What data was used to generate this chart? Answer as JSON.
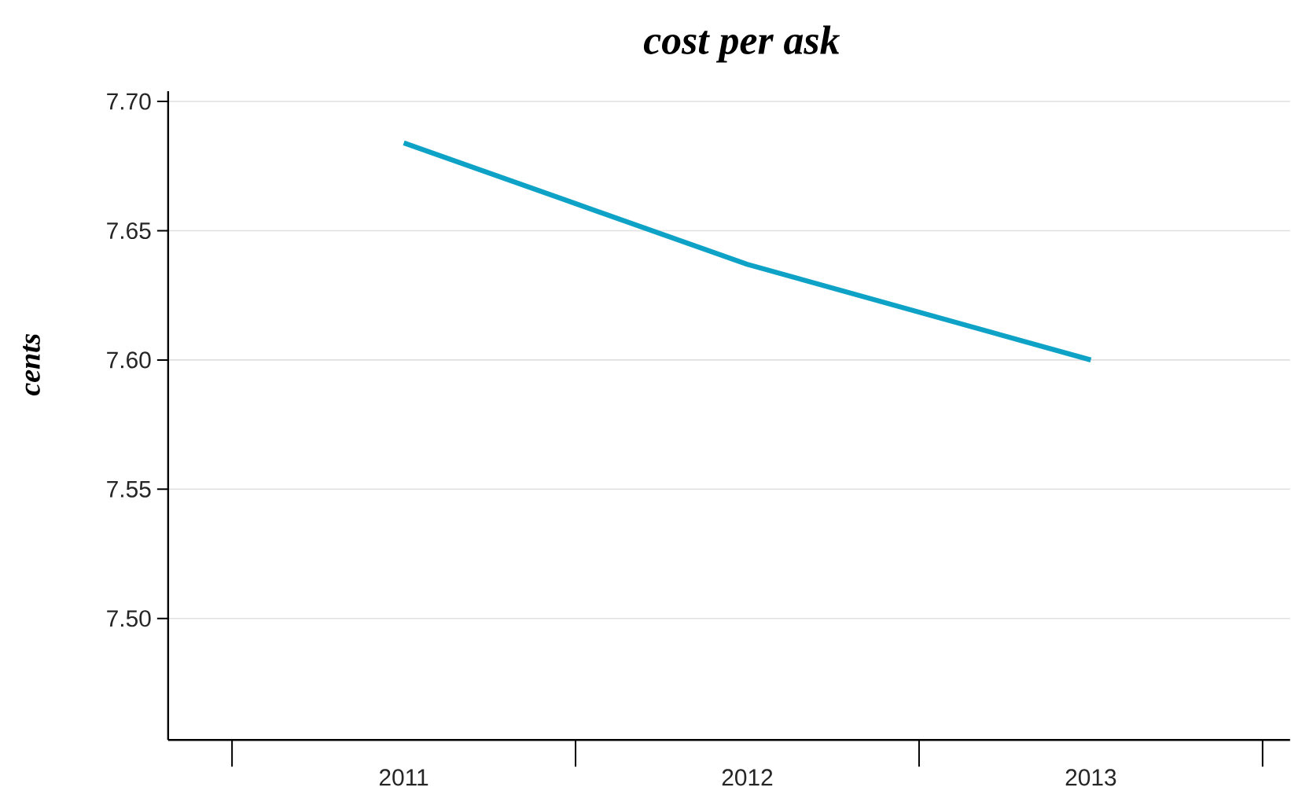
{
  "chart_data": {
    "type": "line",
    "title": "cost per ask",
    "ylabel": "cents",
    "categories": [
      "2011",
      "2012",
      "2013"
    ],
    "series": [
      {
        "color": "#0ea3c6",
        "values": [
          7.684,
          7.637,
          7.6
        ]
      }
    ],
    "ylim": [
      7.453,
      7.704
    ],
    "yticks": [
      {
        "value": 7.5,
        "label": "7.50"
      },
      {
        "value": 7.55,
        "label": "7.55"
      },
      {
        "value": 7.6,
        "label": "7.60"
      },
      {
        "value": 7.65,
        "label": "7.65"
      },
      {
        "value": 7.7,
        "label": "7.70"
      }
    ],
    "grid": "y",
    "marker": "none",
    "line_style": "solid"
  }
}
